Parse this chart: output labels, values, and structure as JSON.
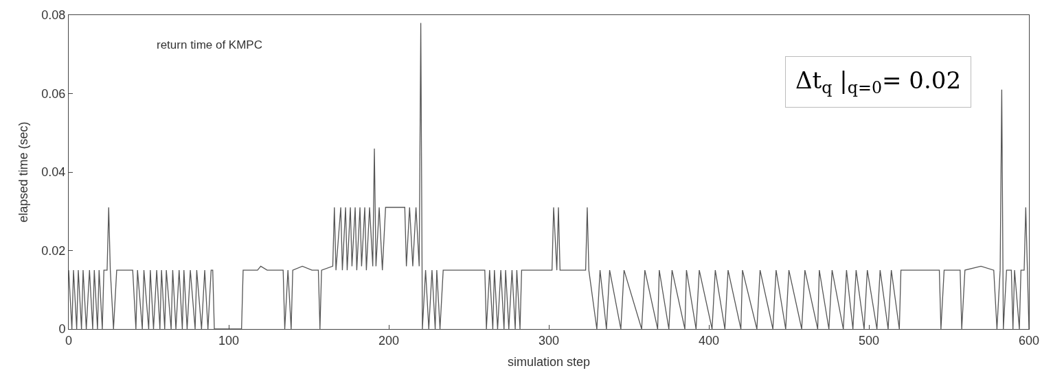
{
  "chart_data": {
    "type": "line",
    "xlabel": "simulation step",
    "ylabel": "elapsed time (sec)",
    "annotations": [
      "return time of KMPC",
      "Δt$_{q}$ |$_{q=0}$= 0.02"
    ],
    "xlim": [
      0,
      600
    ],
    "ylim": [
      0,
      0.08
    ],
    "xticks": [
      0,
      100,
      200,
      300,
      400,
      500,
      600
    ],
    "yticks": [
      0,
      0.02,
      0.04,
      0.06,
      0.08
    ],
    "marker": "none",
    "line_style": "solid",
    "series": [
      {
        "color": "#555555",
        "x": [
          0,
          2,
          3,
          5,
          6,
          8,
          9,
          11,
          13,
          15,
          16,
          18,
          19,
          21,
          22,
          24,
          25,
          26,
          28,
          30,
          40,
          42,
          43,
          46,
          47,
          50,
          51,
          53,
          55,
          57,
          58,
          60,
          61,
          64,
          65,
          67,
          69,
          71,
          72,
          74,
          76,
          79,
          80,
          83,
          85,
          87,
          89,
          90,
          91,
          108,
          109,
          118,
          120,
          124,
          134,
          135,
          137,
          139,
          140,
          146,
          152,
          156,
          157,
          158,
          165,
          166,
          167,
          170,
          171,
          173,
          174,
          176,
          177,
          179,
          180,
          182,
          183,
          185,
          186,
          188,
          190,
          191,
          192,
          194,
          196,
          198,
          210,
          211,
          213,
          215,
          217,
          219,
          220,
          221,
          223,
          225,
          227,
          229,
          230,
          232,
          234,
          260,
          261,
          263,
          265,
          266,
          268,
          270,
          272,
          273,
          275,
          277,
          279,
          280,
          282,
          283,
          302,
          303,
          305,
          306,
          307,
          323,
          324,
          325,
          330,
          332,
          336,
          338,
          345,
          347,
          358,
          360,
          368,
          369,
          375,
          377,
          385,
          386,
          392,
          394,
          402,
          404,
          410,
          412,
          420,
          421,
          430,
          432,
          440,
          442,
          448,
          450,
          458,
          460,
          468,
          469,
          475,
          477,
          484,
          486,
          490,
          492,
          497,
          499,
          505,
          507,
          512,
          514,
          519,
          520,
          544,
          545,
          547,
          557,
          558,
          560,
          570,
          578,
          580,
          582,
          583,
          584,
          586,
          589,
          590,
          591,
          594,
          595,
          597,
          598,
          600
        ],
        "values": [
          0.015,
          0,
          0.015,
          0,
          0.015,
          0,
          0.015,
          0,
          0.015,
          0,
          0.015,
          0,
          0.015,
          0,
          0.015,
          0.015,
          0.031,
          0.015,
          0,
          0.015,
          0.015,
          0,
          0.015,
          0,
          0.015,
          0,
          0.015,
          0,
          0.015,
          0,
          0.015,
          0,
          0.015,
          0,
          0.015,
          0,
          0.015,
          0,
          0.015,
          0,
          0.015,
          0,
          0.015,
          0,
          0.015,
          0,
          0.015,
          0.015,
          0,
          0,
          0.015,
          0.015,
          0.016,
          0.015,
          0.015,
          0,
          0.015,
          0,
          0.015,
          0.016,
          0.015,
          0.015,
          0,
          0.015,
          0.016,
          0.031,
          0.015,
          0.031,
          0.015,
          0.031,
          0.015,
          0.031,
          0.016,
          0.031,
          0.015,
          0.031,
          0.016,
          0.031,
          0.015,
          0.031,
          0.016,
          0.046,
          0.016,
          0.031,
          0.015,
          0.031,
          0.031,
          0.016,
          0.031,
          0.016,
          0.031,
          0.016,
          0.078,
          0,
          0.015,
          0,
          0.015,
          0,
          0.015,
          0,
          0.015,
          0.015,
          0,
          0.015,
          0,
          0.015,
          0,
          0.015,
          0,
          0.015,
          0,
          0.015,
          0,
          0.015,
          0,
          0.015,
          0.015,
          0.031,
          0.015,
          0.031,
          0.015,
          0.015,
          0.031,
          0.015,
          0,
          0.015,
          0,
          0.015,
          0,
          0.015,
          0,
          0.015,
          0,
          0.015,
          0,
          0.015,
          0,
          0.015,
          0,
          0.015,
          0,
          0.015,
          0,
          0.015,
          0,
          0.015,
          0,
          0.015,
          0,
          0.015,
          0,
          0.015,
          0,
          0.015,
          0,
          0.015,
          0,
          0.015,
          0,
          0.015,
          0,
          0.015,
          0,
          0.015,
          0,
          0.015,
          0,
          0.015,
          0,
          0.015,
          0.015,
          0,
          0.015,
          0.015,
          0,
          0.015,
          0.016,
          0.015,
          0,
          0.015,
          0.061,
          0,
          0.015,
          0.015,
          0,
          0.015,
          0,
          0.015,
          0.015,
          0.031,
          0
        ]
      }
    ]
  }
}
